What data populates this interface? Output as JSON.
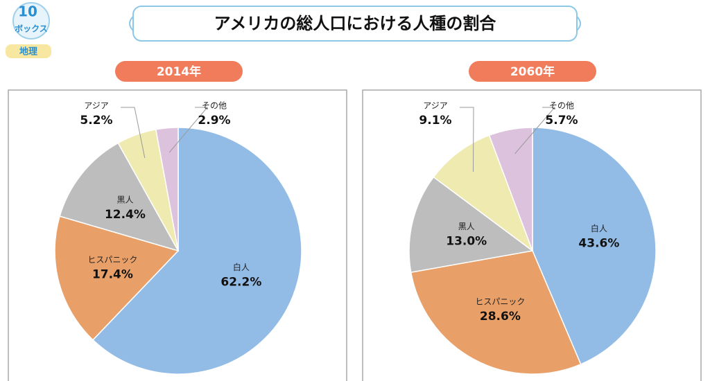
{
  "title": "アメリカの総人口における人種の割合",
  "logo": {
    "number": "10",
    "name": "ボックス",
    "subject": "地理"
  },
  "chart_data": [
    {
      "type": "pie",
      "title": "2014年",
      "categories": [
        "白人",
        "ヒスパニック",
        "黒人",
        "アジア",
        "その他"
      ],
      "values": [
        62.2,
        17.4,
        12.4,
        5.2,
        2.9
      ],
      "value_labels": [
        "62.2%",
        "17.4%",
        "12.4%",
        "5.2%",
        "2.9%"
      ],
      "colors": [
        "#92bce6",
        "#e89f68",
        "#bdbdbd",
        "#eeeab0",
        "#dcc2dc"
      ]
    },
    {
      "type": "pie",
      "title": "2060年",
      "categories": [
        "白人",
        "ヒスパニック",
        "黒人",
        "アジア",
        "その他"
      ],
      "values": [
        43.6,
        28.6,
        13.0,
        9.1,
        5.7
      ],
      "value_labels": [
        "43.6%",
        "28.6%",
        "13.0%",
        "9.1%",
        "5.7%"
      ],
      "colors": [
        "#92bce6",
        "#e89f68",
        "#bdbdbd",
        "#eeeab0",
        "#dcc2dc"
      ]
    }
  ]
}
